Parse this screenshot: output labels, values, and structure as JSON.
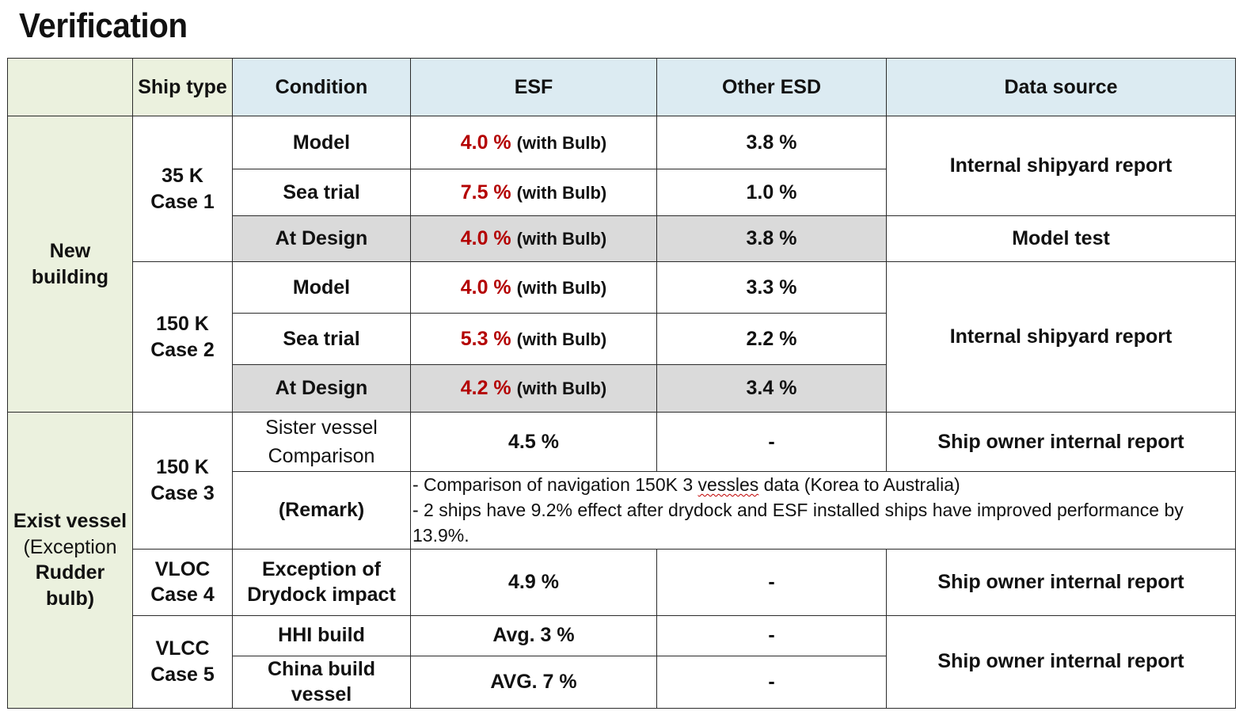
{
  "page_title": "Verification",
  "headers": {
    "blank": "",
    "ship_type": "Ship type",
    "condition": "Condition",
    "esf": "ESF",
    "other_esd": "Other ESD",
    "data_source": "Data source"
  },
  "categories": {
    "new_building": "New building",
    "exist_vessel": [
      "Exist vessel",
      "(Exception",
      "Rudder bulb)"
    ]
  },
  "ship_types": {
    "case1": [
      "35 K",
      "Case 1"
    ],
    "case2": [
      "150 K",
      "Case 2"
    ],
    "case3": [
      "150 K",
      "Case 3"
    ],
    "case4": [
      "VLOC",
      "Case 4"
    ],
    "case5": [
      "VLCC",
      "Case 5"
    ]
  },
  "rows": {
    "c1_model": {
      "condition": "Model",
      "esf": "4.0 %",
      "esf_note": "(with Bulb)",
      "other": "3.8 %"
    },
    "c1_sea": {
      "condition": "Sea trial",
      "esf": "7.5 %",
      "esf_note": "(with Bulb)",
      "other": "1.0 %"
    },
    "c1_design": {
      "condition": "At Design",
      "esf": "4.0 %",
      "esf_note": "(with Bulb)",
      "other": "3.8 %",
      "source": "Model test"
    },
    "c2_model": {
      "condition": "Model",
      "esf": "4.0 %",
      "esf_note": "(with Bulb)",
      "other": "3.3 %"
    },
    "c2_sea": {
      "condition": "Sea trial",
      "esf": "5.3 %",
      "esf_note": "(with Bulb)",
      "other": "2.2 %"
    },
    "c2_design": {
      "condition": "At Design",
      "esf": "4.2 %",
      "esf_note": "(with Bulb)",
      "other": "3.4 %"
    },
    "c3_sister": {
      "condition": [
        "Sister vessel",
        "Comparison"
      ],
      "esf": "4.5 %",
      "other": "-",
      "source": "Ship owner internal report"
    },
    "c3_remark": {
      "condition": "(Remark)",
      "line1_before": "- Comparison of navigation 150K 3 ",
      "line1_word": "vessles",
      "line1_after": " data (Korea to Australia)",
      "line2": "- 2 ships have 9.2% effect after drydock and ESF installed ships have improved performance by 13.9%."
    },
    "c4": {
      "condition": [
        "Exception of",
        "Drydock impact"
      ],
      "esf": "4.9 %",
      "other": "-",
      "source": "Ship owner internal report"
    },
    "c5_hhi": {
      "condition": "HHI build",
      "esf": "Avg. 3 %",
      "other": "-"
    },
    "c5_china": {
      "condition": "China build vessel",
      "esf": "AVG. 7 %",
      "other": "-"
    }
  },
  "sources": {
    "internal_1": "Internal shipyard report",
    "internal_2": "Internal shipyard report",
    "owner_5": "Ship owner internal report"
  },
  "colors": {
    "header_green": "#ebf1de",
    "header_blue": "#dcebf2",
    "design_grey": "#dadada",
    "esf_red": "#b40000"
  }
}
